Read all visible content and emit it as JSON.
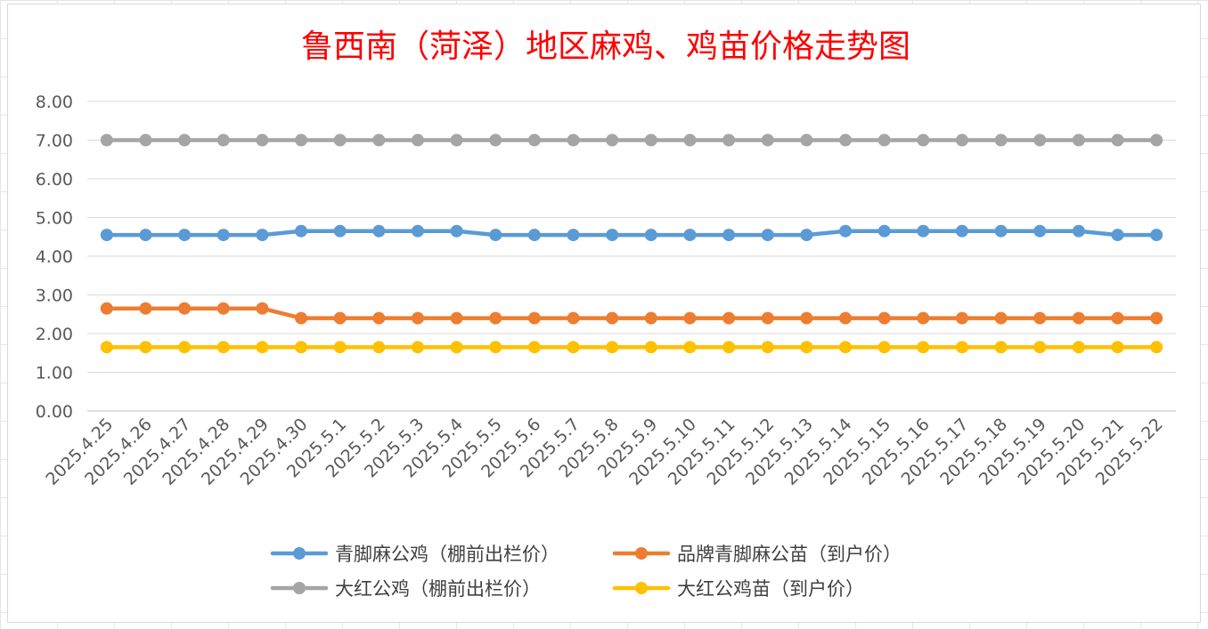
{
  "chart_data": {
    "type": "line",
    "title": "鲁西南（菏泽）地区麻鸡、鸡苗价格走势图",
    "xlabel": "",
    "ylabel": "",
    "ylim": [
      0,
      8
    ],
    "y_ticks": [
      "0.00",
      "1.00",
      "2.00",
      "3.00",
      "4.00",
      "5.00",
      "6.00",
      "7.00",
      "8.00"
    ],
    "grid": true,
    "legend_position": "bottom",
    "categories": [
      "2025.4.25",
      "2025.4.26",
      "2025.4.27",
      "2025.4.28",
      "2025.4.29",
      "2025.4.30",
      "2025.5.1",
      "2025.5.2",
      "2025.5.3",
      "2025.5.4",
      "2025.5.5",
      "2025.5.6",
      "2025.5.7",
      "2025.5.8",
      "2025.5.9",
      "2025.5.10",
      "2025.5.11",
      "2025.5.12",
      "2025.5.13",
      "2025.5.14",
      "2025.5.15",
      "2025.5.16",
      "2025.5.17",
      "2025.5.18",
      "2025.5.19",
      "2025.5.20",
      "2025.5.21",
      "2025.5.22"
    ],
    "series": [
      {
        "name": "青脚麻公鸡（棚前出栏价）",
        "color": "#5b9bd5",
        "values": [
          4.55,
          4.55,
          4.55,
          4.55,
          4.55,
          4.65,
          4.65,
          4.65,
          4.65,
          4.65,
          4.55,
          4.55,
          4.55,
          4.55,
          4.55,
          4.55,
          4.55,
          4.55,
          4.55,
          4.65,
          4.65,
          4.65,
          4.65,
          4.65,
          4.65,
          4.65,
          4.55,
          4.55
        ]
      },
      {
        "name": "品牌青脚麻公苗（到户价）",
        "color": "#ed7d31",
        "values": [
          2.65,
          2.65,
          2.65,
          2.65,
          2.65,
          2.4,
          2.4,
          2.4,
          2.4,
          2.4,
          2.4,
          2.4,
          2.4,
          2.4,
          2.4,
          2.4,
          2.4,
          2.4,
          2.4,
          2.4,
          2.4,
          2.4,
          2.4,
          2.4,
          2.4,
          2.4,
          2.4,
          2.4
        ]
      },
      {
        "name": "大红公鸡（棚前出栏价）",
        "color": "#a5a5a5",
        "values": [
          7,
          7,
          7,
          7,
          7,
          7,
          7,
          7,
          7,
          7,
          7,
          7,
          7,
          7,
          7,
          7,
          7,
          7,
          7,
          7,
          7,
          7,
          7,
          7,
          7,
          7,
          7,
          7
        ]
      },
      {
        "name": "大红公鸡苗（到户价）",
        "color": "#ffc000",
        "values": [
          1.65,
          1.65,
          1.65,
          1.65,
          1.65,
          1.65,
          1.65,
          1.65,
          1.65,
          1.65,
          1.65,
          1.65,
          1.65,
          1.65,
          1.65,
          1.65,
          1.65,
          1.65,
          1.65,
          1.65,
          1.65,
          1.65,
          1.65,
          1.65,
          1.65,
          1.65,
          1.65,
          1.65
        ]
      }
    ]
  }
}
